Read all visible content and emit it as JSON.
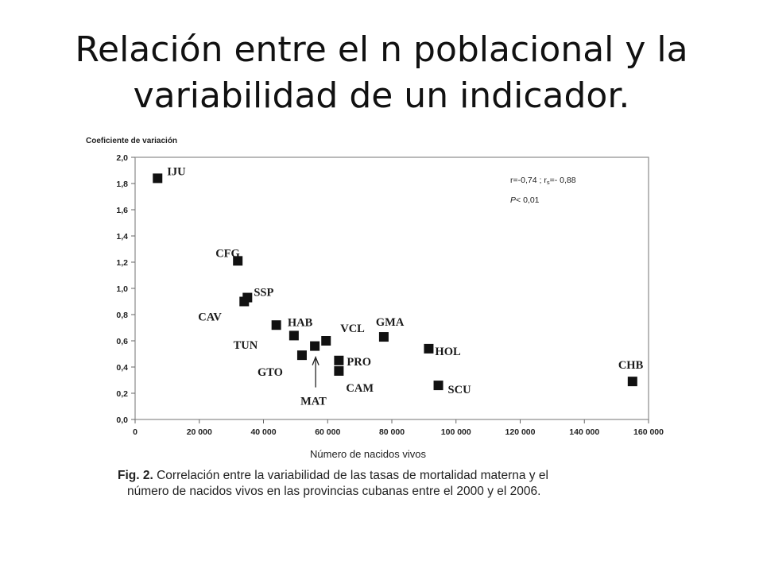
{
  "slide": {
    "title_line1": "Relación entre el n poblacional y la",
    "title_line2": "variabilidad de un indicador."
  },
  "chart_data": {
    "type": "scatter",
    "ylabel": "Coeficiente de variación",
    "xlabel": "Número de nacidos vivos",
    "xlim": [
      0,
      160000
    ],
    "ylim": [
      0,
      2.0
    ],
    "x_ticks": [
      0,
      20000,
      40000,
      60000,
      80000,
      100000,
      120000,
      140000,
      160000
    ],
    "x_tick_labels": [
      "0",
      "20 000",
      "40 000",
      "60 000",
      "80 000",
      "100 000",
      "120 000",
      "140 000",
      "160 000"
    ],
    "y_ticks": [
      0,
      0.2,
      0.4,
      0.6,
      0.8,
      1.0,
      1.2,
      1.4,
      1.6,
      1.8,
      2.0
    ],
    "y_tick_labels": [
      "0,0",
      "0,2",
      "0,4",
      "0,6",
      "0,8",
      "1,0",
      "1,2",
      "1,4",
      "1,6",
      "1,8",
      "2,0"
    ],
    "grid": false,
    "marker": "square",
    "marker_color": "#111111",
    "points": [
      {
        "label": "IJU",
        "x": 7000,
        "y": 1.84
      },
      {
        "label": "CFG",
        "x": 32000,
        "y": 1.21
      },
      {
        "label": "SSP",
        "x": 35000,
        "y": 0.93
      },
      {
        "label": "CAV",
        "x": 34000,
        "y": 0.9
      },
      {
        "label": "TUN",
        "x": 44000,
        "y": 0.72
      },
      {
        "label": "HAB",
        "x": 49500,
        "y": 0.64
      },
      {
        "label": "GTO",
        "x": 52000,
        "y": 0.49
      },
      {
        "label": "MAT",
        "x": 56000,
        "y": 0.56
      },
      {
        "label": "VCL",
        "x": 59500,
        "y": 0.6
      },
      {
        "label": "PRO",
        "x": 63500,
        "y": 0.45
      },
      {
        "label": "CAM",
        "x": 63500,
        "y": 0.37
      },
      {
        "label": "GMA",
        "x": 77500,
        "y": 0.63
      },
      {
        "label": "HOL",
        "x": 91500,
        "y": 0.54
      },
      {
        "label": "SCU",
        "x": 94500,
        "y": 0.26
      },
      {
        "label": "CHB",
        "x": 155000,
        "y": 0.29
      }
    ],
    "annotations": [
      {
        "text": "r=-0,74 ; r",
        "subscript": "s",
        "text_after": "=- 0,88"
      },
      {
        "text_italic": "P",
        "text": "< 0,01"
      }
    ]
  },
  "caption": {
    "label": "Fig. 2.",
    "line1": " Correlación entre la variabilidad de las tasas de mortalidad materna y el",
    "line2": "número de nacidos vivos  en las provincias cubanas entre el 2000 y el 2006."
  }
}
